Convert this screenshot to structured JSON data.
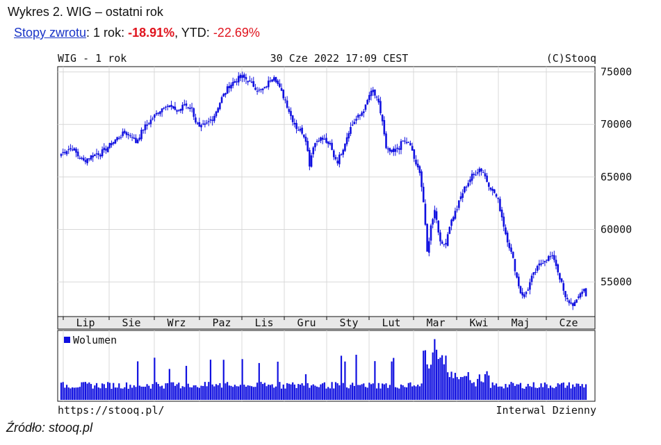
{
  "header": {
    "title": "Wykres 2. WIG – ostatni rok",
    "returns_link": "Stopy zwrotu",
    "returns_1y_label": ": 1 rok: ",
    "returns_1y_value": "-18.91%",
    "returns_ytd_label": ", YTD: ",
    "returns_ytd_value": "-22.69%"
  },
  "source_caption": "Źródło: stooq.pl",
  "colors": {
    "series": "#1010e0",
    "negative": "#e0141e",
    "link": "#1a35c8",
    "grid": "#d8d8d8",
    "axis_band": "#e8e8e8"
  },
  "chart_data": [
    {
      "type": "candlestick",
      "header_left": "WIG - 1 rok",
      "header_center": "30 Cze 2022 17:09 CEST",
      "header_right": "(C)Stooq",
      "x_ticks": [
        "Lip",
        "Sie",
        "Wrz",
        "Paz",
        "Lis",
        "Gru",
        "Sty",
        "Lut",
        "Mar",
        "Kwi",
        "Maj",
        "Cze"
      ],
      "y_ticks": [
        "75000",
        "70000",
        "65000",
        "60000",
        "55000"
      ],
      "y_tick_values": [
        75000,
        70000,
        65000,
        60000,
        55000
      ],
      "ylim": [
        51700,
        75500
      ],
      "grid": true,
      "close_anchors": [
        [
          0,
          67200
        ],
        [
          3,
          67600
        ],
        [
          6,
          67800
        ],
        [
          9,
          67000
        ],
        [
          12,
          66500
        ],
        [
          15,
          66900
        ],
        [
          18,
          67100
        ],
        [
          22,
          67400
        ],
        [
          26,
          68000
        ],
        [
          30,
          68700
        ],
        [
          34,
          69200
        ],
        [
          38,
          68900
        ],
        [
          40,
          68300
        ],
        [
          44,
          69600
        ],
        [
          48,
          70400
        ],
        [
          52,
          71200
        ],
        [
          56,
          71900
        ],
        [
          59,
          71600
        ],
        [
          63,
          71300
        ],
        [
          66,
          71900
        ],
        [
          70,
          71500
        ],
        [
          72,
          70300
        ],
        [
          74,
          69600
        ],
        [
          78,
          70000
        ],
        [
          82,
          70900
        ],
        [
          86,
          72500
        ],
        [
          90,
          73700
        ],
        [
          94,
          74300
        ],
        [
          97,
          74500
        ],
        [
          100,
          74200
        ],
        [
          103,
          73700
        ],
        [
          106,
          73200
        ],
        [
          109,
          73400
        ],
        [
          112,
          74300
        ],
        [
          114,
          74700
        ],
        [
          117,
          73400
        ],
        [
          120,
          72300
        ],
        [
          123,
          70800
        ],
        [
          126,
          69700
        ],
        [
          129,
          69300
        ],
        [
          131,
          68600
        ],
        [
          133,
          66200
        ],
        [
          135,
          68000
        ],
        [
          138,
          68700
        ],
        [
          141,
          68500
        ],
        [
          144,
          68000
        ],
        [
          146,
          67000
        ],
        [
          148,
          66500
        ],
        [
          151,
          67800
        ],
        [
          154,
          69400
        ],
        [
          157,
          70300
        ],
        [
          160,
          70900
        ],
        [
          163,
          71700
        ],
        [
          165,
          72800
        ],
        [
          167,
          73200
        ],
        [
          170,
          71900
        ],
        [
          172,
          70300
        ],
        [
          174,
          67600
        ],
        [
          176,
          67400
        ],
        [
          178,
          67300
        ],
        [
          180,
          67700
        ],
        [
          183,
          68400
        ],
        [
          186,
          68200
        ],
        [
          188,
          67500
        ],
        [
          190,
          66000
        ],
        [
          192,
          65600
        ],
        [
          194,
          62600
        ],
        [
          196,
          57800
        ],
        [
          198,
          60300
        ],
        [
          200,
          62000
        ],
        [
          202,
          59800
        ],
        [
          204,
          58400
        ],
        [
          206,
          58800
        ],
        [
          208,
          60400
        ],
        [
          210,
          61300
        ],
        [
          212,
          62000
        ],
        [
          214,
          63100
        ],
        [
          216,
          63900
        ],
        [
          218,
          64500
        ],
        [
          220,
          65100
        ],
        [
          222,
          65400
        ],
        [
          224,
          65800
        ],
        [
          226,
          65500
        ],
        [
          228,
          64600
        ],
        [
          230,
          64000
        ],
        [
          232,
          63500
        ],
        [
          234,
          62700
        ],
        [
          236,
          61200
        ],
        [
          238,
          59600
        ],
        [
          240,
          58400
        ],
        [
          242,
          57100
        ],
        [
          244,
          55400
        ],
        [
          246,
          54000
        ],
        [
          248,
          53700
        ],
        [
          250,
          54400
        ],
        [
          252,
          55400
        ],
        [
          254,
          56000
        ],
        [
          256,
          56600
        ],
        [
          258,
          57000
        ],
        [
          260,
          57300
        ],
        [
          262,
          57400
        ],
        [
          264,
          57200
        ],
        [
          266,
          56000
        ],
        [
          268,
          54800
        ],
        [
          270,
          53400
        ],
        [
          272,
          53100
        ],
        [
          274,
          52900
        ],
        [
          276,
          53100
        ],
        [
          278,
          54000
        ],
        [
          280,
          54300
        ],
        [
          281,
          53600
        ]
      ],
      "volume_legend": "Wolumen",
      "footer_left": "https://stooq.pl/",
      "footer_right": "Interwal Dzienny"
    }
  ]
}
